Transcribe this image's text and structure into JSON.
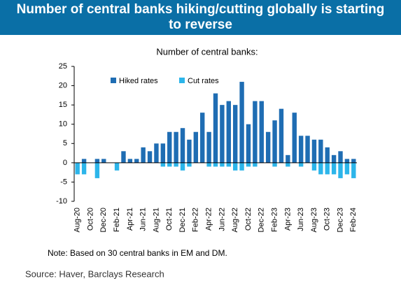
{
  "title": "Number of central banks hiking/cutting globally is starting to reverse",
  "chart_data": {
    "type": "bar",
    "subtitle": "Number of central banks:",
    "categories": [
      "Aug-20",
      null,
      "Oct-20",
      null,
      "Dec-20",
      null,
      "Feb-21",
      null,
      "Apr-21",
      null,
      "Jun-21",
      null,
      "Aug-21",
      null,
      "Oct-21",
      null,
      "Dec-21",
      null,
      "Feb-22",
      null,
      "Apr-22",
      null,
      "Jun-22",
      null,
      "Aug-22",
      null,
      "Oct-22",
      null,
      "Dec-22",
      null,
      "Feb-23",
      null,
      "Apr-23",
      null,
      "Jun-23",
      null,
      "Aug-23",
      null,
      "Oct-23",
      null,
      "Dec-23",
      null,
      "Feb-24"
    ],
    "series": [
      {
        "name": "Hiked rates",
        "color": "#1f6db3",
        "values": [
          0,
          1,
          0,
          1,
          1,
          0,
          0,
          3,
          1,
          1,
          4,
          3,
          5,
          5,
          8,
          8,
          9,
          6,
          8,
          13,
          8,
          18,
          15,
          16,
          15,
          21,
          10,
          16,
          16,
          8,
          11,
          14,
          2,
          13,
          7,
          7,
          6,
          6,
          4,
          2,
          3,
          1,
          1
        ]
      },
      {
        "name": "Cut rates",
        "color": "#2cb5ea",
        "values": [
          -3,
          -3,
          0,
          -4,
          0,
          0,
          -2,
          0,
          0,
          0,
          0,
          0,
          0,
          -1,
          -1,
          -1,
          -2,
          -1,
          0,
          0,
          -1,
          -1,
          -1,
          -1,
          -2,
          -2,
          -1,
          -1,
          0,
          0,
          -1,
          0,
          -1,
          0,
          -1,
          0,
          -2,
          -3,
          -3,
          -3,
          -4,
          -3,
          -4
        ]
      }
    ],
    "ylim": [
      -10,
      25
    ],
    "yticks": [
      -10,
      -5,
      0,
      5,
      10,
      15,
      20,
      25
    ],
    "legend": "top-left"
  },
  "note": "Note: Based on 30 central banks in EM and DM.",
  "source": "Source: Haver, Barclays Research"
}
